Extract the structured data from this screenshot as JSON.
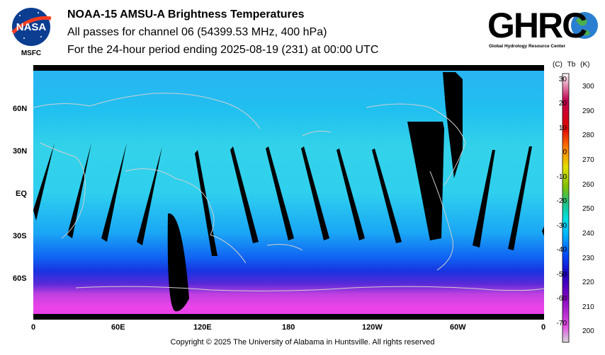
{
  "header": {
    "title": "NOAA-15 AMSU-A Brightness Temperatures",
    "subtitle_channel": "All passes for channel 06 (54399.53 MHz, 400 hPa)",
    "subtitle_period": "For the 24-hour period ending 2025-08-19 (231) at 00:00 UTC"
  },
  "logos": {
    "nasa_text": "NASA",
    "msfc_text": "MSFC",
    "ghrc_text": "GHRC",
    "ghrc_subtitle": "Global Hydrology Resource Center"
  },
  "map": {
    "lat_labels": [
      "60N",
      "30N",
      "EQ",
      "30S",
      "60S"
    ],
    "lat_values": [
      60,
      30,
      0,
      -30,
      -60
    ],
    "lon_labels": [
      "0",
      "60E",
      "120E",
      "180",
      "120W",
      "60W",
      "0"
    ],
    "lon_values": [
      0,
      60,
      120,
      180,
      240,
      300,
      360
    ]
  },
  "colorbar": {
    "header_c": "(C)",
    "header_tb": "Tb",
    "header_k": "(K)",
    "celsius_labels": [
      "30",
      "20",
      "10",
      "0",
      "-10",
      "-20",
      "-30",
      "-40",
      "-50",
      "-60",
      "-70"
    ],
    "kelvin_labels": [
      "300",
      "290",
      "280",
      "270",
      "260",
      "250",
      "240",
      "230",
      "220",
      "210",
      "200"
    ],
    "colors": [
      "#d8d8d8",
      "#e050e0",
      "#8000c0",
      "#2000c0",
      "#0050ff",
      "#00b4ff",
      "#00e0e0",
      "#20c080",
      "#80c000",
      "#e0e000",
      "#ff8000",
      "#e00000",
      "#c00050",
      "#ffffff"
    ]
  },
  "footer": {
    "copyright": "Copyright © 2025 The University of Alabama in Huntsville.  All rights reserved"
  }
}
